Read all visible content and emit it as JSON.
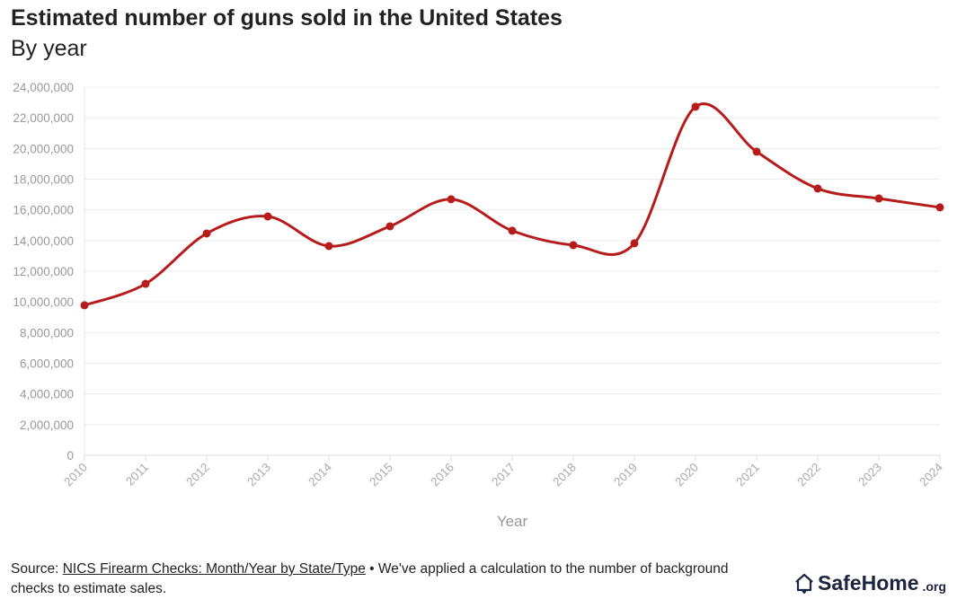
{
  "chart_data": {
    "type": "line",
    "title": "Estimated number of guns sold in the United States",
    "subtitle": "By year",
    "xlabel": "Year",
    "ylabel": "",
    "categories": [
      "2010",
      "2011",
      "2012",
      "2013",
      "2014",
      "2015",
      "2016",
      "2017",
      "2018",
      "2019",
      "2020",
      "2021",
      "2022",
      "2023",
      "2024"
    ],
    "series": [
      {
        "name": "Estimated guns sold",
        "values": [
          9780000,
          11180000,
          14460000,
          15570000,
          13640000,
          14930000,
          16690000,
          14640000,
          13700000,
          13820000,
          22720000,
          19790000,
          17390000,
          16740000,
          16160000
        ]
      }
    ],
    "ylim": [
      0,
      24000000
    ],
    "yticks": [
      "0",
      "2,000,000",
      "4,000,000",
      "6,000,000",
      "8,000,000",
      "10,000,000",
      "12,000,000",
      "14,000,000",
      "16,000,000",
      "18,000,000",
      "20,000,000",
      "22,000,000",
      "24,000,000"
    ],
    "grid": true,
    "line_color": "#b71c1c"
  },
  "footer": {
    "source_prefix": "Source: ",
    "source_link": "NICS Firearm Checks: Month/Year by State/Type",
    "source_suffix": " • We've applied a calculation to the number of background checks to estimate sales.",
    "logo_name": "SafeHome",
    "logo_tld": ".org"
  }
}
